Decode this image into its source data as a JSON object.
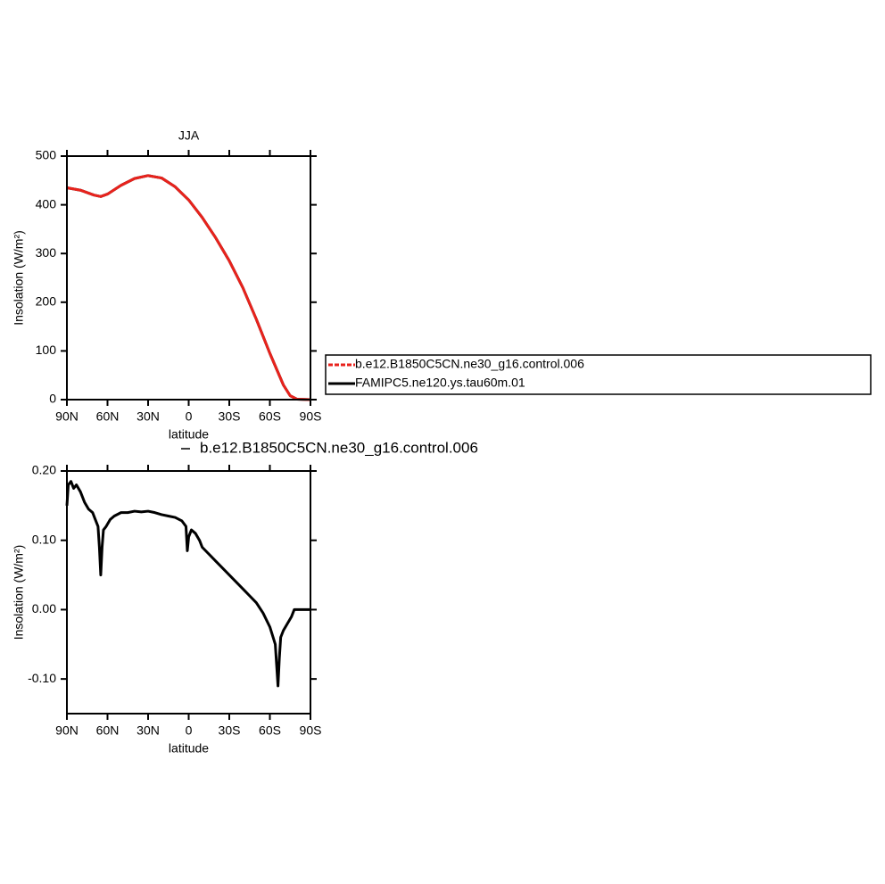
{
  "chart_data": [
    {
      "type": "line",
      "title": "JJA",
      "x_label": "latitude",
      "y_label": "Insolation (W/m²)",
      "x": [
        90,
        80,
        70,
        65,
        60,
        50,
        40,
        30,
        20,
        10,
        0,
        -10,
        -20,
        -30,
        -40,
        -50,
        -60,
        -70,
        -75,
        -80,
        -90
      ],
      "series": [
        {
          "name": "FAMIPC5.ne120.ys.tau60m.01",
          "color": "#000000",
          "values": [
            435,
            430,
            420,
            417,
            422,
            440,
            454,
            460,
            455,
            437,
            410,
            374,
            332,
            285,
            230,
            165,
            95,
            30,
            8,
            1,
            0
          ]
        },
        {
          "name": "b.e12.B1850C5CN.ne30_g16.control.006",
          "color": "#e8221c",
          "values": [
            435,
            430,
            420,
            417,
            422,
            440,
            454,
            460,
            455,
            437,
            410,
            374,
            332,
            285,
            230,
            165,
            95,
            30,
            8,
            1,
            0
          ]
        }
      ],
      "xlim": [
        90,
        -90
      ],
      "xticks": [
        {
          "value": 90,
          "label": "90N"
        },
        {
          "value": 60,
          "label": "60N"
        },
        {
          "value": 30,
          "label": "30N"
        },
        0,
        {
          "value": -30,
          "label": "30S"
        },
        {
          "value": -60,
          "label": "60S"
        },
        {
          "value": -90,
          "label": "90S"
        }
      ],
      "ylim": [
        0,
        500
      ],
      "yticks": [
        0,
        100,
        200,
        300,
        400,
        500
      ],
      "legend": "right"
    },
    {
      "type": "line",
      "x_label": "latitude",
      "y_label": "Insolation (W/m²)",
      "x": [
        90,
        89,
        87,
        85,
        83,
        80,
        77,
        74,
        71,
        69,
        67,
        66,
        65,
        64,
        63,
        61,
        58,
        55,
        50,
        45,
        40,
        35,
        30,
        25,
        20,
        15,
        10,
        5,
        2,
        1,
        0,
        -2,
        -5,
        -8,
        -10,
        -15,
        -20,
        -25,
        -30,
        -35,
        -40,
        -45,
        -50,
        -55,
        -60,
        -64,
        -65,
        -66,
        -67,
        -68,
        -70,
        -73,
        -76,
        -78,
        -80,
        -85,
        -90
      ],
      "series": [
        {
          "name": "b.e12.B1850C5CN.ne30_g16.control.006",
          "color": "#000000",
          "values": [
            0.15,
            0.18,
            0.185,
            0.175,
            0.18,
            0.17,
            0.155,
            0.145,
            0.14,
            0.13,
            0.12,
            0.09,
            0.05,
            0.09,
            0.115,
            0.12,
            0.13,
            0.135,
            0.14,
            0.14,
            0.142,
            0.141,
            0.142,
            0.14,
            0.137,
            0.135,
            0.133,
            0.128,
            0.12,
            0.085,
            0.105,
            0.115,
            0.11,
            0.1,
            0.09,
            0.08,
            0.07,
            0.06,
            0.05,
            0.04,
            0.03,
            0.02,
            0.01,
            -0.005,
            -0.025,
            -0.05,
            -0.08,
            -0.11,
            -0.07,
            -0.04,
            -0.03,
            -0.02,
            -0.01,
            0,
            0,
            0,
            0
          ]
        }
      ],
      "xlim": [
        90,
        -90
      ],
      "xticks": [
        {
          "value": 90,
          "label": "90N"
        },
        {
          "value": 60,
          "label": "60N"
        },
        {
          "value": 30,
          "label": "30N"
        },
        0,
        {
          "value": -30,
          "label": "30S"
        },
        {
          "value": -60,
          "label": "60S"
        },
        {
          "value": -90,
          "label": "90S"
        }
      ],
      "ylim": [
        -0.15,
        0.2
      ],
      "yticks": [
        {
          "value": -0.1,
          "label": "-0.10"
        },
        {
          "value": 0,
          "label": "0.00"
        },
        {
          "value": 0.1,
          "label": "0.10"
        },
        {
          "value": 0.2,
          "label": "0.20"
        }
      ],
      "legend": "top"
    }
  ]
}
